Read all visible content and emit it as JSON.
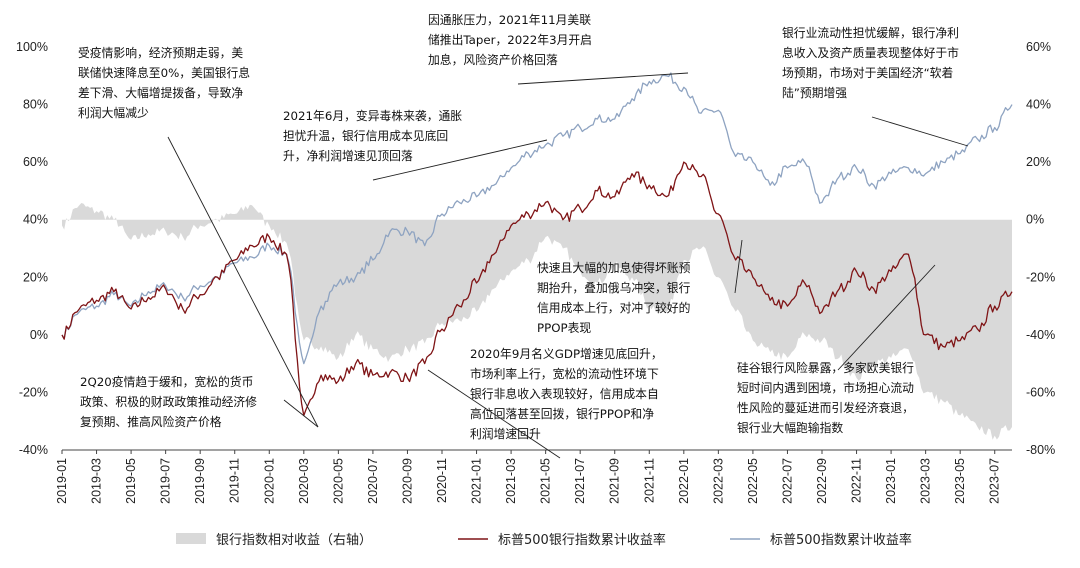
{
  "chart_data": {
    "type": "line",
    "title": "",
    "x_ticks": [
      "2019-01",
      "2019-03",
      "2019-05",
      "2019-07",
      "2019-09",
      "2019-11",
      "2020-01",
      "2020-03",
      "2020-05",
      "2020-07",
      "2020-09",
      "2020-11",
      "2021-01",
      "2021-03",
      "2021-05",
      "2021-07",
      "2021-09",
      "2021-11",
      "2022-01",
      "2022-03",
      "2022-05",
      "2022-07",
      "2022-09",
      "2022-11",
      "2023-01",
      "2023-03",
      "2023-05",
      "2023-07"
    ],
    "x_range": [
      "2019-01",
      "2023-08"
    ],
    "left_axis": {
      "ylim": [
        -40,
        100
      ],
      "ticks": [
        "-40%",
        "-20%",
        "0%",
        "20%",
        "40%",
        "60%",
        "80%",
        "100%"
      ]
    },
    "right_axis": {
      "ylim": [
        -80,
        60
      ],
      "ticks": [
        "-80%",
        "-60%",
        "-40%",
        "-20%",
        "0%",
        "20%",
        "40%",
        "60%"
      ]
    },
    "series": [
      {
        "name": "银行指数相对收益（右轴）",
        "kind": "area",
        "axis": "right",
        "color": "#d9d9d9",
        "points": [
          [
            "2019-01",
            -2
          ],
          [
            "2019-02",
            5
          ],
          [
            "2019-03",
            3
          ],
          [
            "2019-04",
            0
          ],
          [
            "2019-05",
            -7
          ],
          [
            "2019-06",
            -5
          ],
          [
            "2019-07",
            -4
          ],
          [
            "2019-08",
            -6
          ],
          [
            "2019-09",
            -2
          ],
          [
            "2019-10",
            0
          ],
          [
            "2019-11",
            2
          ],
          [
            "2019-12",
            5
          ],
          [
            "2020-01",
            -2
          ],
          [
            "2020-02",
            -8
          ],
          [
            "2020-03",
            -42
          ],
          [
            "2020-04",
            -44
          ],
          [
            "2020-05",
            -48
          ],
          [
            "2020-06",
            -40
          ],
          [
            "2020-07",
            -45
          ],
          [
            "2020-08",
            -48
          ],
          [
            "2020-09",
            -45
          ],
          [
            "2020-10",
            -43
          ],
          [
            "2020-11",
            -36
          ],
          [
            "2020-12",
            -35
          ],
          [
            "2021-01",
            -32
          ],
          [
            "2021-02",
            -24
          ],
          [
            "2021-03",
            -18
          ],
          [
            "2021-04",
            -14
          ],
          [
            "2021-05",
            -6
          ],
          [
            "2021-06",
            -10
          ],
          [
            "2021-07",
            -18
          ],
          [
            "2021-08",
            -22
          ],
          [
            "2021-09",
            -16
          ],
          [
            "2021-10",
            -20
          ],
          [
            "2021-11",
            -30
          ],
          [
            "2021-12",
            -32
          ],
          [
            "2022-01",
            -14
          ],
          [
            "2022-02",
            -10
          ],
          [
            "2022-03",
            -20
          ],
          [
            "2022-04",
            -32
          ],
          [
            "2022-05",
            -42
          ],
          [
            "2022-06",
            -46
          ],
          [
            "2022-07",
            -48
          ],
          [
            "2022-08",
            -40
          ],
          [
            "2022-09",
            -42
          ],
          [
            "2022-10",
            -48
          ],
          [
            "2022-11",
            -55
          ],
          [
            "2022-12",
            -50
          ],
          [
            "2023-01",
            -48
          ],
          [
            "2023-02",
            -45
          ],
          [
            "2023-03",
            -60
          ],
          [
            "2023-04",
            -63
          ],
          [
            "2023-05",
            -68
          ],
          [
            "2023-06",
            -72
          ],
          [
            "2023-07",
            -75
          ],
          [
            "2023-08",
            -72
          ]
        ]
      },
      {
        "name": "标普500银行指数累计收益率",
        "kind": "line",
        "axis": "left",
        "color": "#7f1416",
        "points": [
          [
            "2019-01",
            0
          ],
          [
            "2019-02",
            9
          ],
          [
            "2019-03",
            12
          ],
          [
            "2019-04",
            15
          ],
          [
            "2019-05",
            9
          ],
          [
            "2019-06",
            13
          ],
          [
            "2019-07",
            16
          ],
          [
            "2019-08",
            9
          ],
          [
            "2019-09",
            14
          ],
          [
            "2019-10",
            20
          ],
          [
            "2019-11",
            26
          ],
          [
            "2019-12",
            31
          ],
          [
            "2020-01",
            34
          ],
          [
            "2020-02",
            28
          ],
          [
            "2020-03",
            -28
          ],
          [
            "2020-04",
            -14
          ],
          [
            "2020-05",
            -16
          ],
          [
            "2020-06",
            -10
          ],
          [
            "2020-07",
            -14
          ],
          [
            "2020-08",
            -13
          ],
          [
            "2020-09",
            -15
          ],
          [
            "2020-10",
            -10
          ],
          [
            "2020-11",
            2
          ],
          [
            "2020-12",
            10
          ],
          [
            "2021-01",
            18
          ],
          [
            "2021-02",
            28
          ],
          [
            "2021-03",
            38
          ],
          [
            "2021-04",
            42
          ],
          [
            "2021-05",
            46
          ],
          [
            "2021-06",
            40
          ],
          [
            "2021-07",
            44
          ],
          [
            "2021-08",
            50
          ],
          [
            "2021-09",
            48
          ],
          [
            "2021-10",
            56
          ],
          [
            "2021-11",
            52
          ],
          [
            "2021-12",
            48
          ],
          [
            "2022-01",
            60
          ],
          [
            "2022-02",
            55
          ],
          [
            "2022-03",
            42
          ],
          [
            "2022-04",
            26
          ],
          [
            "2022-05",
            20
          ],
          [
            "2022-06",
            12
          ],
          [
            "2022-07",
            10
          ],
          [
            "2022-08",
            18
          ],
          [
            "2022-09",
            8
          ],
          [
            "2022-10",
            16
          ],
          [
            "2022-11",
            22
          ],
          [
            "2022-12",
            16
          ],
          [
            "2023-01",
            22
          ],
          [
            "2023-02",
            28
          ],
          [
            "2023-03",
            0
          ],
          [
            "2023-04",
            -4
          ],
          [
            "2023-05",
            -2
          ],
          [
            "2023-06",
            2
          ],
          [
            "2023-07",
            10
          ],
          [
            "2023-08",
            15
          ]
        ]
      },
      {
        "name": "标普500指数累计收益率",
        "kind": "line",
        "axis": "left",
        "color": "#8ea3c1",
        "points": [
          [
            "2019-01",
            0
          ],
          [
            "2019-02",
            8
          ],
          [
            "2019-03",
            10
          ],
          [
            "2019-04",
            14
          ],
          [
            "2019-05",
            10
          ],
          [
            "2019-06",
            15
          ],
          [
            "2019-07",
            17
          ],
          [
            "2019-08",
            13
          ],
          [
            "2019-09",
            17
          ],
          [
            "2019-10",
            20
          ],
          [
            "2019-11",
            25
          ],
          [
            "2019-12",
            27
          ],
          [
            "2020-01",
            31
          ],
          [
            "2020-02",
            28
          ],
          [
            "2020-03",
            -10
          ],
          [
            "2020-04",
            10
          ],
          [
            "2020-05",
            18
          ],
          [
            "2020-06",
            20
          ],
          [
            "2020-07",
            26
          ],
          [
            "2020-08",
            36
          ],
          [
            "2020-09",
            36
          ],
          [
            "2020-10",
            31
          ],
          [
            "2020-11",
            42
          ],
          [
            "2020-12",
            46
          ],
          [
            "2021-01",
            48
          ],
          [
            "2021-02",
            52
          ],
          [
            "2021-03",
            58
          ],
          [
            "2021-04",
            63
          ],
          [
            "2021-05",
            66
          ],
          [
            "2021-06",
            69
          ],
          [
            "2021-07",
            72
          ],
          [
            "2021-08",
            75
          ],
          [
            "2021-09",
            75
          ],
          [
            "2021-10",
            82
          ],
          [
            "2021-11",
            88
          ],
          [
            "2021-12",
            90
          ],
          [
            "2022-01",
            86
          ],
          [
            "2022-02",
            77
          ],
          [
            "2022-03",
            78
          ],
          [
            "2022-04",
            62
          ],
          [
            "2022-05",
            60
          ],
          [
            "2022-06",
            52
          ],
          [
            "2022-07",
            58
          ],
          [
            "2022-08",
            60
          ],
          [
            "2022-09",
            46
          ],
          [
            "2022-10",
            55
          ],
          [
            "2022-11",
            58
          ],
          [
            "2022-12",
            52
          ],
          [
            "2023-01",
            56
          ],
          [
            "2023-02",
            58
          ],
          [
            "2023-03",
            56
          ],
          [
            "2023-04",
            60
          ],
          [
            "2023-05",
            63
          ],
          [
            "2023-06",
            68
          ],
          [
            "2023-07",
            72
          ],
          [
            "2023-08",
            80
          ]
        ]
      }
    ],
    "annotations": [
      {
        "lines": [
          "受疫情影响，经济预期走弱，美",
          "联储快速降息至0%，美国银行息",
          "差下滑、大幅增提拨备，导致净",
          "利润大幅减少"
        ]
      },
      {
        "lines": [
          "因通胀压力，2021年11月美联",
          "储推出Taper，2022年3月开启",
          "加息，风险资产价格回落"
        ]
      },
      {
        "lines": [
          "银行业流动性担忧缓解，银行净利",
          "息收入及资产质量表现整体好于市",
          "场预期，市场对于美国经济“软着",
          "陆”预期增强"
        ]
      },
      {
        "lines": [
          "2021年6月，变异毒株来袭，通胀",
          "担忧升温，银行信用成本见底回",
          "升，净利润增速见顶回落"
        ]
      },
      {
        "lines": [
          "快速且大幅的加息使得坏账预",
          "期抬升，叠加俄乌冲突，银行",
          "信用成本上行，对冲了较好的",
          "PPOP表现"
        ]
      },
      {
        "lines": [
          "2020年9月名义GDP增速见底回升，",
          "市场利率上行，宽松的流动性环境下",
          "银行非息收入表现较好，信用成本自",
          "高位回落甚至回拨，银行PPOP和净",
          "利润增速回升"
        ]
      },
      {
        "lines": [
          "2Q20疫情趋于缓和，宽松的货币",
          "政策、积极的财政政策推动经济修",
          "复预期、推高风险资产价格"
        ]
      },
      {
        "lines": [
          "硅谷银行风险暴露，多家欧美银行",
          "短时间内遇到困境，市场担心流动",
          "性风险的蔓延进而引发经济衰退，",
          "银行业大幅跑输指数"
        ]
      }
    ],
    "legend": {
      "placement": "bottom",
      "items": [
        "银行指数相对收益（右轴）",
        "标普500银行指数累计收益率",
        "标普500指数累计收益率"
      ]
    }
  }
}
